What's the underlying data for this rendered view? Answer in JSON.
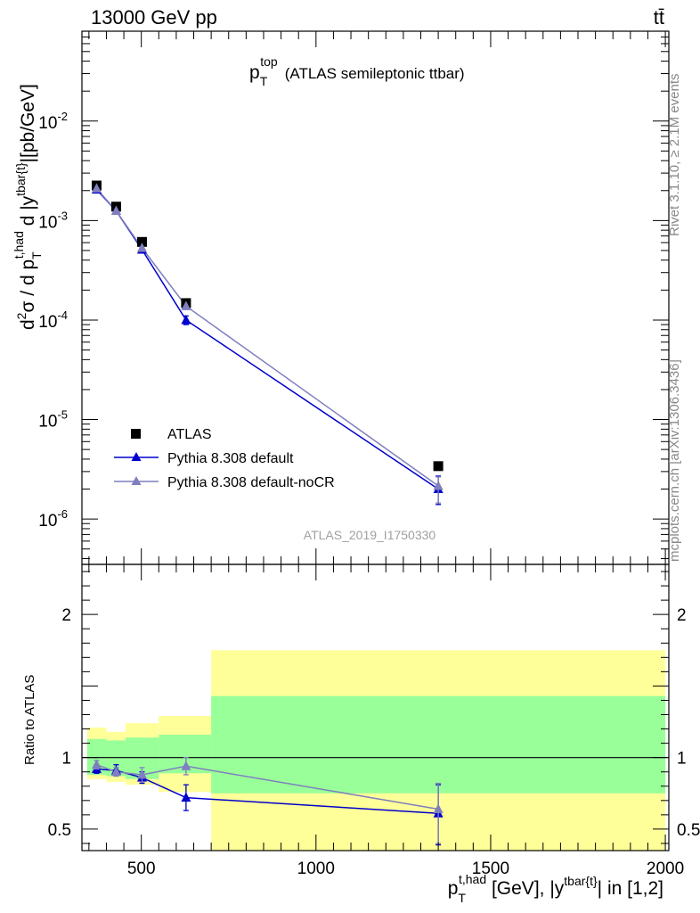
{
  "header": {
    "energy_label": "13000 GeV pp",
    "process_label": "tt̄",
    "side_version": "Rivet 3.1.10, ≥ 2.1M events",
    "side_site": "mcplots.cern.ch [arXiv:1306.3436]",
    "analysis_id": "ATLAS_2019_I1750330"
  },
  "colors": {
    "data": "#000000",
    "pythia_default": "#0000cc",
    "pythia_nocr": "#7f7fbf",
    "band_inner": "#99ff99",
    "band_outer": "#ffff99"
  },
  "chart_data": [
    {
      "type": "line",
      "title": "p_T^top (ATLAS semileptonic ttbar)",
      "title_parts": {
        "p": "p",
        "sub": "T",
        "sup": "top",
        "rest": "(ATLAS semileptonic ttbar)"
      },
      "ylabel": "d²σ / d p_T^{t,had} d |y^{tbar{t}}|[pb/GeV]",
      "ylabel_parts": {
        "d2": "d",
        "two": "2",
        "sig": "σ / d p",
        "subT": "T",
        "suphad": "t,had",
        "mid": " d |y",
        "supy": "tbar{t}",
        "end": "|[pb/GeV]"
      },
      "yscale": "log",
      "ylim": [
        3.5e-07,
        0.08
      ],
      "xlim": [
        330,
        2010
      ],
      "ytick_labels": [
        {
          "value": 1e-06,
          "mant": "10",
          "exp": "-6"
        },
        {
          "value": 1e-05,
          "mant": "10",
          "exp": "-5"
        },
        {
          "value": 0.0001,
          "mant": "10",
          "exp": "-4"
        },
        {
          "value": 0.001,
          "mant": "10",
          "exp": "-3"
        },
        {
          "value": 0.01,
          "mant": "10",
          "exp": "-2"
        }
      ],
      "legend_position": "lower-left",
      "series": [
        {
          "name": "ATLAS",
          "marker": "square",
          "x": [
            372,
            428,
            502,
            628,
            1350
          ],
          "y": [
            0.00225,
            0.00138,
            0.00061,
            0.000148,
            3.4e-06
          ]
        },
        {
          "name": "Pythia 8.308 default",
          "marker": "triangle",
          "x": [
            372,
            428,
            502,
            628,
            1350
          ],
          "y": [
            0.00205,
            0.00125,
            0.00051,
            0.0001,
            2e-06
          ],
          "yerr_low": [
            0.0,
            0.0,
            0.0,
            1e-05,
            6e-07
          ],
          "yerr_high": [
            0.0,
            0.0,
            0.0,
            1e-05,
            7e-07
          ]
        },
        {
          "name": "Pythia 8.308 default-noCR",
          "marker": "triangle",
          "x": [
            372,
            428,
            502,
            628,
            1350
          ],
          "y": [
            0.0021,
            0.00125,
            0.00053,
            0.000138,
            2.15e-06
          ],
          "yerr_low": [
            0.0,
            0.0,
            0.0,
            0.0,
            7e-07
          ],
          "yerr_high": [
            0.0,
            0.0,
            0.0,
            0.0,
            5e-07
          ]
        }
      ]
    },
    {
      "type": "line",
      "ylabel": "Ratio to ATLAS",
      "xlabel": "p_T^{t,had} [GeV], |y^{tbar{t}}| in [1,2]",
      "xlabel_parts": {
        "p": "p",
        "subT": "T",
        "suphad": "t,had",
        "mid": " [GeV], |y",
        "supy": "tbar{t}",
        "end": "| in [1,2]"
      },
      "ylim": [
        0.35,
        2.35
      ],
      "xlim": [
        330,
        2010
      ],
      "xticks": [
        500,
        1000,
        1500,
        2000
      ],
      "xtick_labels": [
        "500",
        "1000",
        "1500",
        "2000"
      ],
      "yticks": [
        0.5,
        1,
        2
      ],
      "ytick_labels": [
        "0.5",
        "1",
        "2"
      ],
      "reference_line": 1,
      "bands": [
        {
          "x0": 345,
          "x1": 400,
          "inner_lo": 0.88,
          "inner_hi": 1.13,
          "outer_lo": 0.85,
          "outer_hi": 1.21
        },
        {
          "x0": 400,
          "x1": 455,
          "inner_lo": 0.87,
          "inner_hi": 1.12,
          "outer_lo": 0.83,
          "outer_hi": 1.18
        },
        {
          "x0": 455,
          "x1": 550,
          "inner_lo": 0.85,
          "inner_hi": 1.14,
          "outer_lo": 0.81,
          "outer_hi": 1.24
        },
        {
          "x0": 550,
          "x1": 700,
          "inner_lo": 0.89,
          "inner_hi": 1.16,
          "outer_lo": 0.76,
          "outer_hi": 1.29
        },
        {
          "x0": 700,
          "x1": 2000,
          "inner_lo": 0.75,
          "inner_hi": 1.43,
          "outer_lo": 0.31,
          "outer_hi": 1.75
        }
      ],
      "series": [
        {
          "name": "Pythia 8.308 default",
          "x": [
            372,
            428,
            502,
            628,
            1350
          ],
          "y": [
            0.92,
            0.91,
            0.86,
            0.72,
            0.61
          ],
          "yerr_low": [
            0.03,
            0.03,
            0.04,
            0.09,
            0.22
          ],
          "yerr_high": [
            0.03,
            0.04,
            0.04,
            0.09,
            0.2
          ]
        },
        {
          "name": "Pythia 8.308 default-noCR",
          "x": [
            372,
            428,
            502,
            628,
            1350
          ],
          "y": [
            0.95,
            0.9,
            0.88,
            0.94,
            0.64
          ],
          "yerr_low": [
            0.03,
            0.03,
            0.05,
            0.06,
            0.24
          ],
          "yerr_high": [
            0.03,
            0.03,
            0.05,
            0.06,
            0.18
          ]
        }
      ]
    }
  ]
}
